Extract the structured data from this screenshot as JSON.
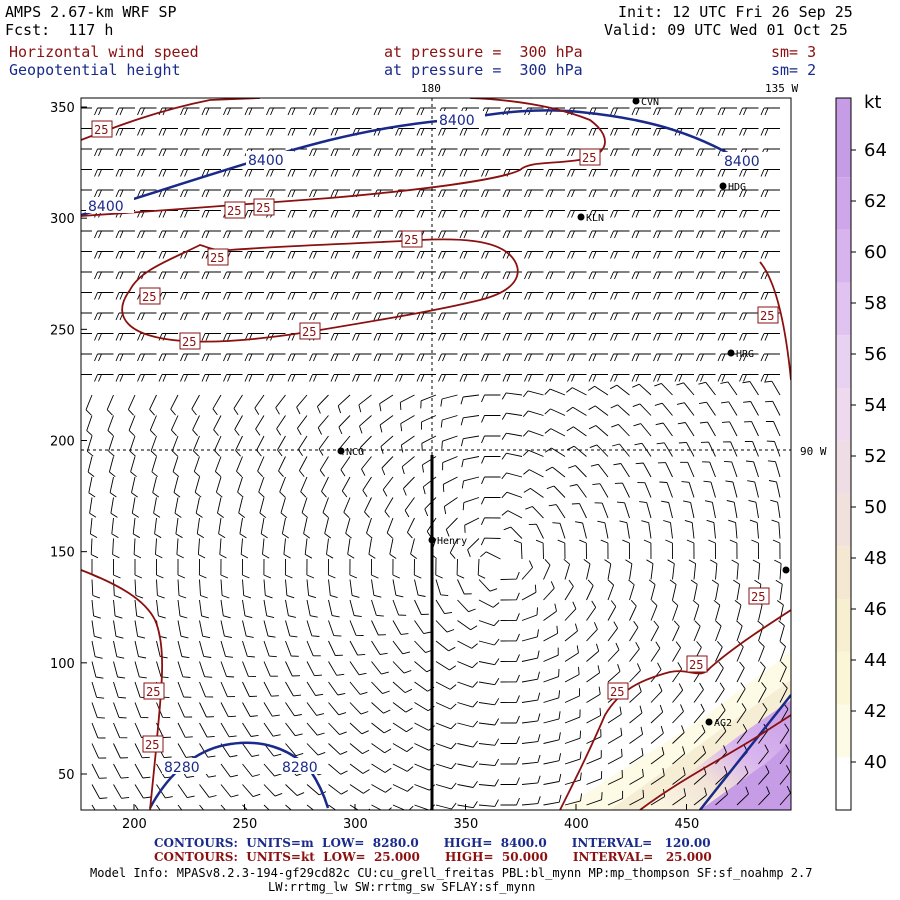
{
  "header": {
    "model": "AMPS 2.67-km WRF SP",
    "forecast": "Fcst:  117 h",
    "init": "Init: 12 UTC Fri 26 Sep 25",
    "valid": "Valid: 09 UTC Wed 01 Oct 25",
    "field1_name": "Horizontal wind speed",
    "field1_level": "at pressure =  300 hPa",
    "field1_sm": "sm= 3",
    "field2_name": "Geopotential height",
    "field2_level": "at pressure =  300 hPa",
    "field2_sm": "sm= 2"
  },
  "map": {
    "x_ticks": [
      "200",
      "250",
      "300",
      "350",
      "400",
      "450"
    ],
    "y_ticks": [
      "50",
      "100",
      "150",
      "200",
      "250",
      "300",
      "350"
    ],
    "lon_label_top": "180",
    "lon_label_top_right": "135 W",
    "lon_label_right": "90 W",
    "height_contour_labels": [
      "8400",
      "8400",
      "8400",
      "8280",
      "8280"
    ],
    "speed_contour_label": "25",
    "stations": [
      "CVN",
      "HDG",
      "KLN",
      "HRG",
      "NCO",
      "Henry",
      "AG2"
    ]
  },
  "colorbar": {
    "unit": "kt",
    "labels": [
      "64",
      "62",
      "60",
      "58",
      "56",
      "54",
      "52",
      "50",
      "48",
      "46",
      "44",
      "42",
      "40"
    ],
    "colors": [
      "#c79ce6",
      "#cfa6ea",
      "#d8b4ee",
      "#e0c3f0",
      "#e8d2f2",
      "#eed9ef",
      "#efdde5",
      "#f0e1dc",
      "#f4e8d2",
      "#f7efcf",
      "#fbf6d5",
      "#fdfbe6",
      "#ffffff"
    ]
  },
  "footer": {
    "line1_contours": "CONTOURS:",
    "line1_units": "UNITS=m",
    "line1_low": "LOW=  8280.0",
    "line1_high": "HIGH=  8400.0",
    "line1_interval": "INTERVAL=   120.00",
    "line2_contours": "CONTOURS:",
    "line2_units": "UNITS=kt",
    "line2_low": "LOW=  25.000",
    "line2_high": "HIGH=  50.000",
    "line2_interval": "INTERVAL=   25.000",
    "model_info": "Model Info: MPASv8.2.3-194-gf29cd82c CU:cu_grell_freitas PBL:bl_mynn MP:mp_thompson SF:sf_noahmp 2.7",
    "model_info2": "LW:rrtmg_lw SW:rrtmg_sw SFLAY:sf_mynn"
  }
}
